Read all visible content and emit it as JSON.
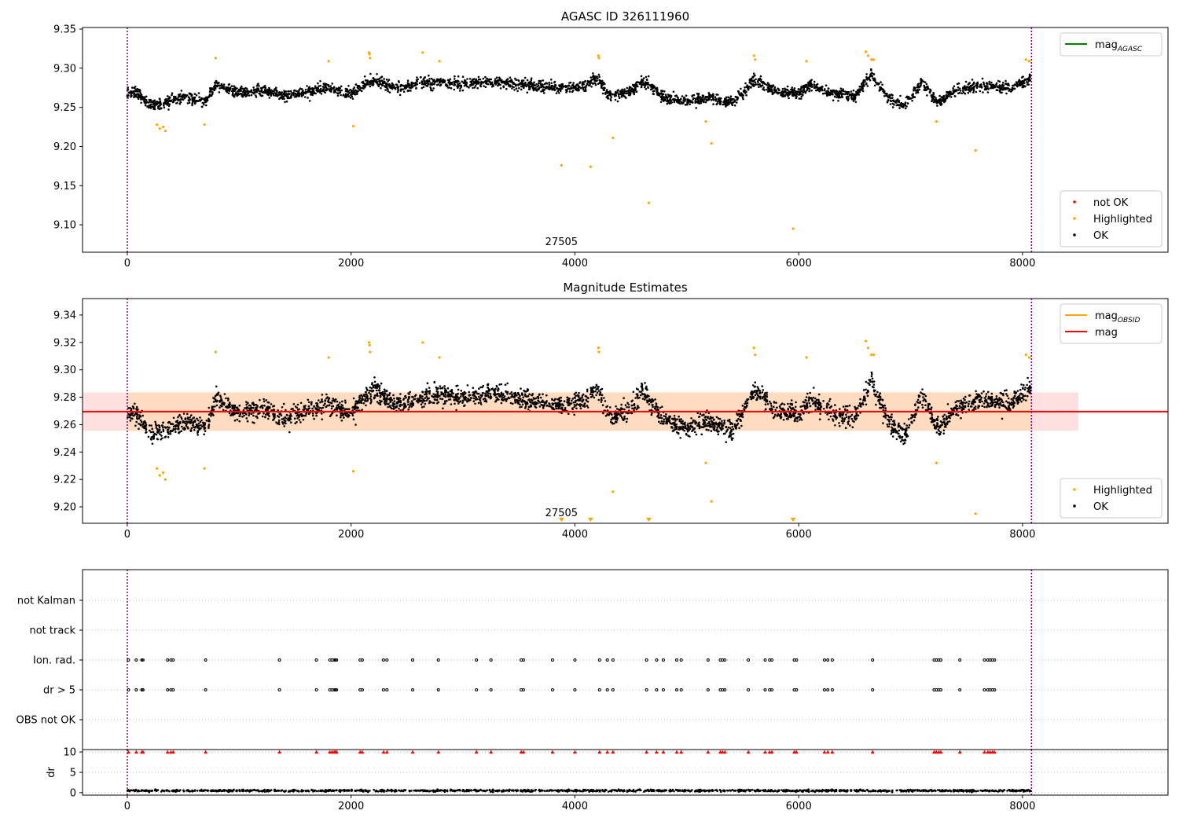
{
  "chart_data": [
    {
      "type": "scatter",
      "title": "AGASC ID 326111960",
      "annotation": "27505",
      "xlim": [
        -400,
        9300
      ],
      "ylim": [
        9.065,
        9.352
      ],
      "xticks": [
        0,
        2000,
        4000,
        6000,
        8000
      ],
      "yticks": [
        9.1,
        9.15,
        9.2,
        9.25,
        9.3,
        9.35
      ],
      "ytick_labels": [
        "9.10",
        "9.15",
        "9.20",
        "9.25",
        "9.30",
        "9.35"
      ],
      "vlines": [
        0,
        8080
      ],
      "series": [
        {
          "name": "OK",
          "color": "#000000",
          "kind": "dense-band",
          "trend": [
            [
              0,
              9.268
            ],
            [
              100,
              9.268
            ],
            [
              200,
              9.252
            ],
            [
              300,
              9.255
            ],
            [
              500,
              9.262
            ],
            [
              700,
              9.258
            ],
            [
              800,
              9.28
            ],
            [
              1000,
              9.268
            ],
            [
              1200,
              9.272
            ],
            [
              1400,
              9.265
            ],
            [
              1600,
              9.27
            ],
            [
              1800,
              9.275
            ],
            [
              2000,
              9.268
            ],
            [
              2100,
              9.278
            ],
            [
              2200,
              9.285
            ],
            [
              2400,
              9.275
            ],
            [
              2600,
              9.28
            ],
            [
              2800,
              9.282
            ],
            [
              3000,
              9.28
            ],
            [
              3300,
              9.283
            ],
            [
              3600,
              9.278
            ],
            [
              3900,
              9.275
            ],
            [
              4100,
              9.278
            ],
            [
              4200,
              9.288
            ],
            [
              4300,
              9.265
            ],
            [
              4500,
              9.27
            ],
            [
              4600,
              9.285
            ],
            [
              4800,
              9.262
            ],
            [
              5000,
              9.258
            ],
            [
              5200,
              9.262
            ],
            [
              5400,
              9.255
            ],
            [
              5600,
              9.285
            ],
            [
              5800,
              9.27
            ],
            [
              6000,
              9.268
            ],
            [
              6100,
              9.278
            ],
            [
              6300,
              9.268
            ],
            [
              6500,
              9.265
            ],
            [
              6650,
              9.292
            ],
            [
              6800,
              9.262
            ],
            [
              6950,
              9.252
            ],
            [
              7100,
              9.282
            ],
            [
              7250,
              9.255
            ],
            [
              7400,
              9.272
            ],
            [
              7600,
              9.278
            ],
            [
              7900,
              9.275
            ],
            [
              8080,
              9.288
            ]
          ],
          "spread": 0.009
        },
        {
          "name": "Highlighted",
          "color": "#ffa500",
          "points": [
            [
              265,
              9.228
            ],
            [
              290,
              9.223
            ],
            [
              320,
              9.225
            ],
            [
              340,
              9.22
            ],
            [
              690,
              9.228
            ],
            [
              790,
              9.313
            ],
            [
              1800,
              9.309
            ],
            [
              2020,
              9.226
            ],
            [
              2160,
              9.32
            ],
            [
              2165,
              9.318
            ],
            [
              2170,
              9.313
            ],
            [
              2640,
              9.32
            ],
            [
              2790,
              9.309
            ],
            [
              3880,
              9.176
            ],
            [
              4140,
              9.174
            ],
            [
              4210,
              9.316
            ],
            [
              4215,
              9.313
            ],
            [
              4340,
              9.211
            ],
            [
              4660,
              9.128
            ],
            [
              5170,
              9.232
            ],
            [
              5220,
              9.204
            ],
            [
              5600,
              9.316
            ],
            [
              5610,
              9.311
            ],
            [
              5950,
              9.095
            ],
            [
              6070,
              9.309
            ],
            [
              6600,
              9.321
            ],
            [
              6620,
              9.316
            ],
            [
              6650,
              9.311
            ],
            [
              6670,
              9.311
            ],
            [
              7230,
              9.232
            ],
            [
              7580,
              9.195
            ],
            [
              8030,
              9.311
            ],
            [
              8060,
              9.309
            ]
          ]
        },
        {
          "name": "not OK",
          "color": "#ff0000",
          "points": []
        }
      ],
      "legends": [
        {
          "position": "top-right",
          "entries": [
            {
              "label": "mag",
              "subscript": "AGASC",
              "color": "#008000",
              "kind": "line"
            }
          ]
        },
        {
          "position": "bottom-right",
          "entries": [
            {
              "label": "not OK",
              "color": "#ff0000",
              "kind": "dot"
            },
            {
              "label": "Highlighted",
              "color": "#ffa500",
              "kind": "dot"
            },
            {
              "label": "OK",
              "color": "#000000",
              "kind": "dot"
            }
          ]
        }
      ]
    },
    {
      "type": "scatter",
      "title": "Magnitude Estimates",
      "annotation": "27505",
      "xlim": [
        -400,
        9300
      ],
      "ylim": [
        9.188,
        9.352
      ],
      "xticks": [
        0,
        2000,
        4000,
        6000,
        8000
      ],
      "yticks": [
        9.2,
        9.22,
        9.24,
        9.26,
        9.28,
        9.3,
        9.32,
        9.34
      ],
      "ytick_labels": [
        "9.20",
        "9.22",
        "9.24",
        "9.26",
        "9.28",
        "9.30",
        "9.32",
        "9.34"
      ],
      "vlines": [
        0,
        8080
      ],
      "mag_line": {
        "value": 9.2695,
        "color": "#ff0000",
        "x_range": [
          -400,
          9300
        ]
      },
      "mag_band": {
        "low": 9.2555,
        "high": 9.2835,
        "x_range": [
          -400,
          8500
        ],
        "color": "#ffcccc"
      },
      "mag_obsid_band": {
        "low": 9.2555,
        "high": 9.2835,
        "x_range": [
          0,
          8080
        ],
        "color": "#ffd8b0"
      },
      "markers_below_axis": [
        3880,
        4140,
        4660,
        5950
      ],
      "legends": [
        {
          "position": "top-right",
          "entries": [
            {
              "label": "mag",
              "subscript": "OBSID",
              "color": "#ffa500",
              "kind": "line"
            },
            {
              "label": "mag",
              "subscript": "",
              "color": "#ff0000",
              "kind": "line"
            }
          ]
        },
        {
          "position": "bottom-right",
          "entries": [
            {
              "label": "Highlighted",
              "color": "#ffa500",
              "kind": "dot"
            },
            {
              "label": "OK",
              "color": "#000000",
              "kind": "dot"
            }
          ]
        }
      ]
    },
    {
      "type": "scatter",
      "title": "",
      "xlim": [
        -400,
        9300
      ],
      "categories": [
        "not Kalman",
        "not track",
        "Ion. rad.",
        "dr > 5",
        "OBS not OK"
      ],
      "xticks": [
        0,
        2000,
        4000,
        6000,
        8000
      ],
      "vlines": [
        0,
        8080
      ],
      "flag_times": [
        10,
        80,
        130,
        140,
        360,
        390,
        410,
        700,
        1360,
        1690,
        1810,
        1830,
        1850,
        1860,
        1870,
        2080,
        2100,
        2290,
        2320,
        2550,
        2780,
        3120,
        3250,
        3520,
        3540,
        3800,
        4000,
        4220,
        4290,
        4340,
        4640,
        4730,
        4790,
        4910,
        4950,
        5190,
        5300,
        5320,
        5340,
        5550,
        5700,
        5740,
        5760,
        5960,
        5980,
        6230,
        6260,
        6300,
        6660,
        7210,
        7230,
        7250,
        7270,
        7440,
        7660,
        7690,
        7710,
        7730,
        7750
      ],
      "flag_rows": [
        "Ion. rad.",
        "dr > 5"
      ],
      "point_color": "#000000"
    },
    {
      "type": "scatter",
      "title": "",
      "ylabel": "dr",
      "xlim": [
        -400,
        9300
      ],
      "ylim": [
        -0.6,
        10.6
      ],
      "xticks": [
        0,
        2000,
        4000,
        6000,
        8000
      ],
      "yticks": [
        0,
        5,
        10
      ],
      "vlines": [
        0,
        8080
      ],
      "dr_mean": 0.5,
      "dr_spread": 0.35,
      "capped_value": 10,
      "capped_color": "#ff0000"
    }
  ]
}
